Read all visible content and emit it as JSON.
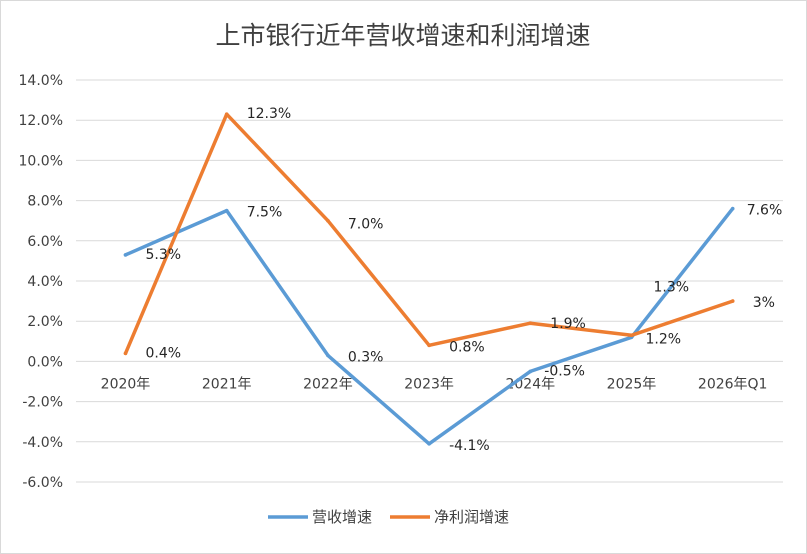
{
  "chart_data": {
    "type": "line",
    "title": "上市银行近年营收增速和利润增速",
    "categories": [
      "2020年",
      "2021年",
      "2022年",
      "2023年",
      "2024年",
      "2025年",
      "2026年Q1"
    ],
    "ylim": [
      -6,
      14
    ],
    "yticks": [
      "14.0%",
      "12.0%",
      "10.0%",
      "8.0%",
      "6.0%",
      "4.0%",
      "2.0%",
      "0.0%",
      "-2.0%",
      "-4.0%",
      "-6.0%"
    ],
    "grid": true,
    "legend_position": "bottom",
    "series": [
      {
        "name": "营收增速",
        "color": "#5b9bd5",
        "values": [
          5.3,
          7.5,
          0.3,
          -4.1,
          -0.5,
          1.2,
          7.6
        ],
        "labels": [
          "5.3%",
          "7.5%",
          "0.3%",
          "-4.1%",
          "-0.5%",
          "1.2%",
          "7.6%"
        ]
      },
      {
        "name": "净利润增速",
        "color": "#ed7d31",
        "values": [
          0.4,
          12.3,
          7.0,
          0.8,
          1.9,
          1.3,
          3.0
        ],
        "labels": [
          "0.4%",
          "12.3%",
          "7.0%",
          "0.8%",
          "1.9%",
          "1.3%",
          "3%"
        ]
      }
    ]
  }
}
